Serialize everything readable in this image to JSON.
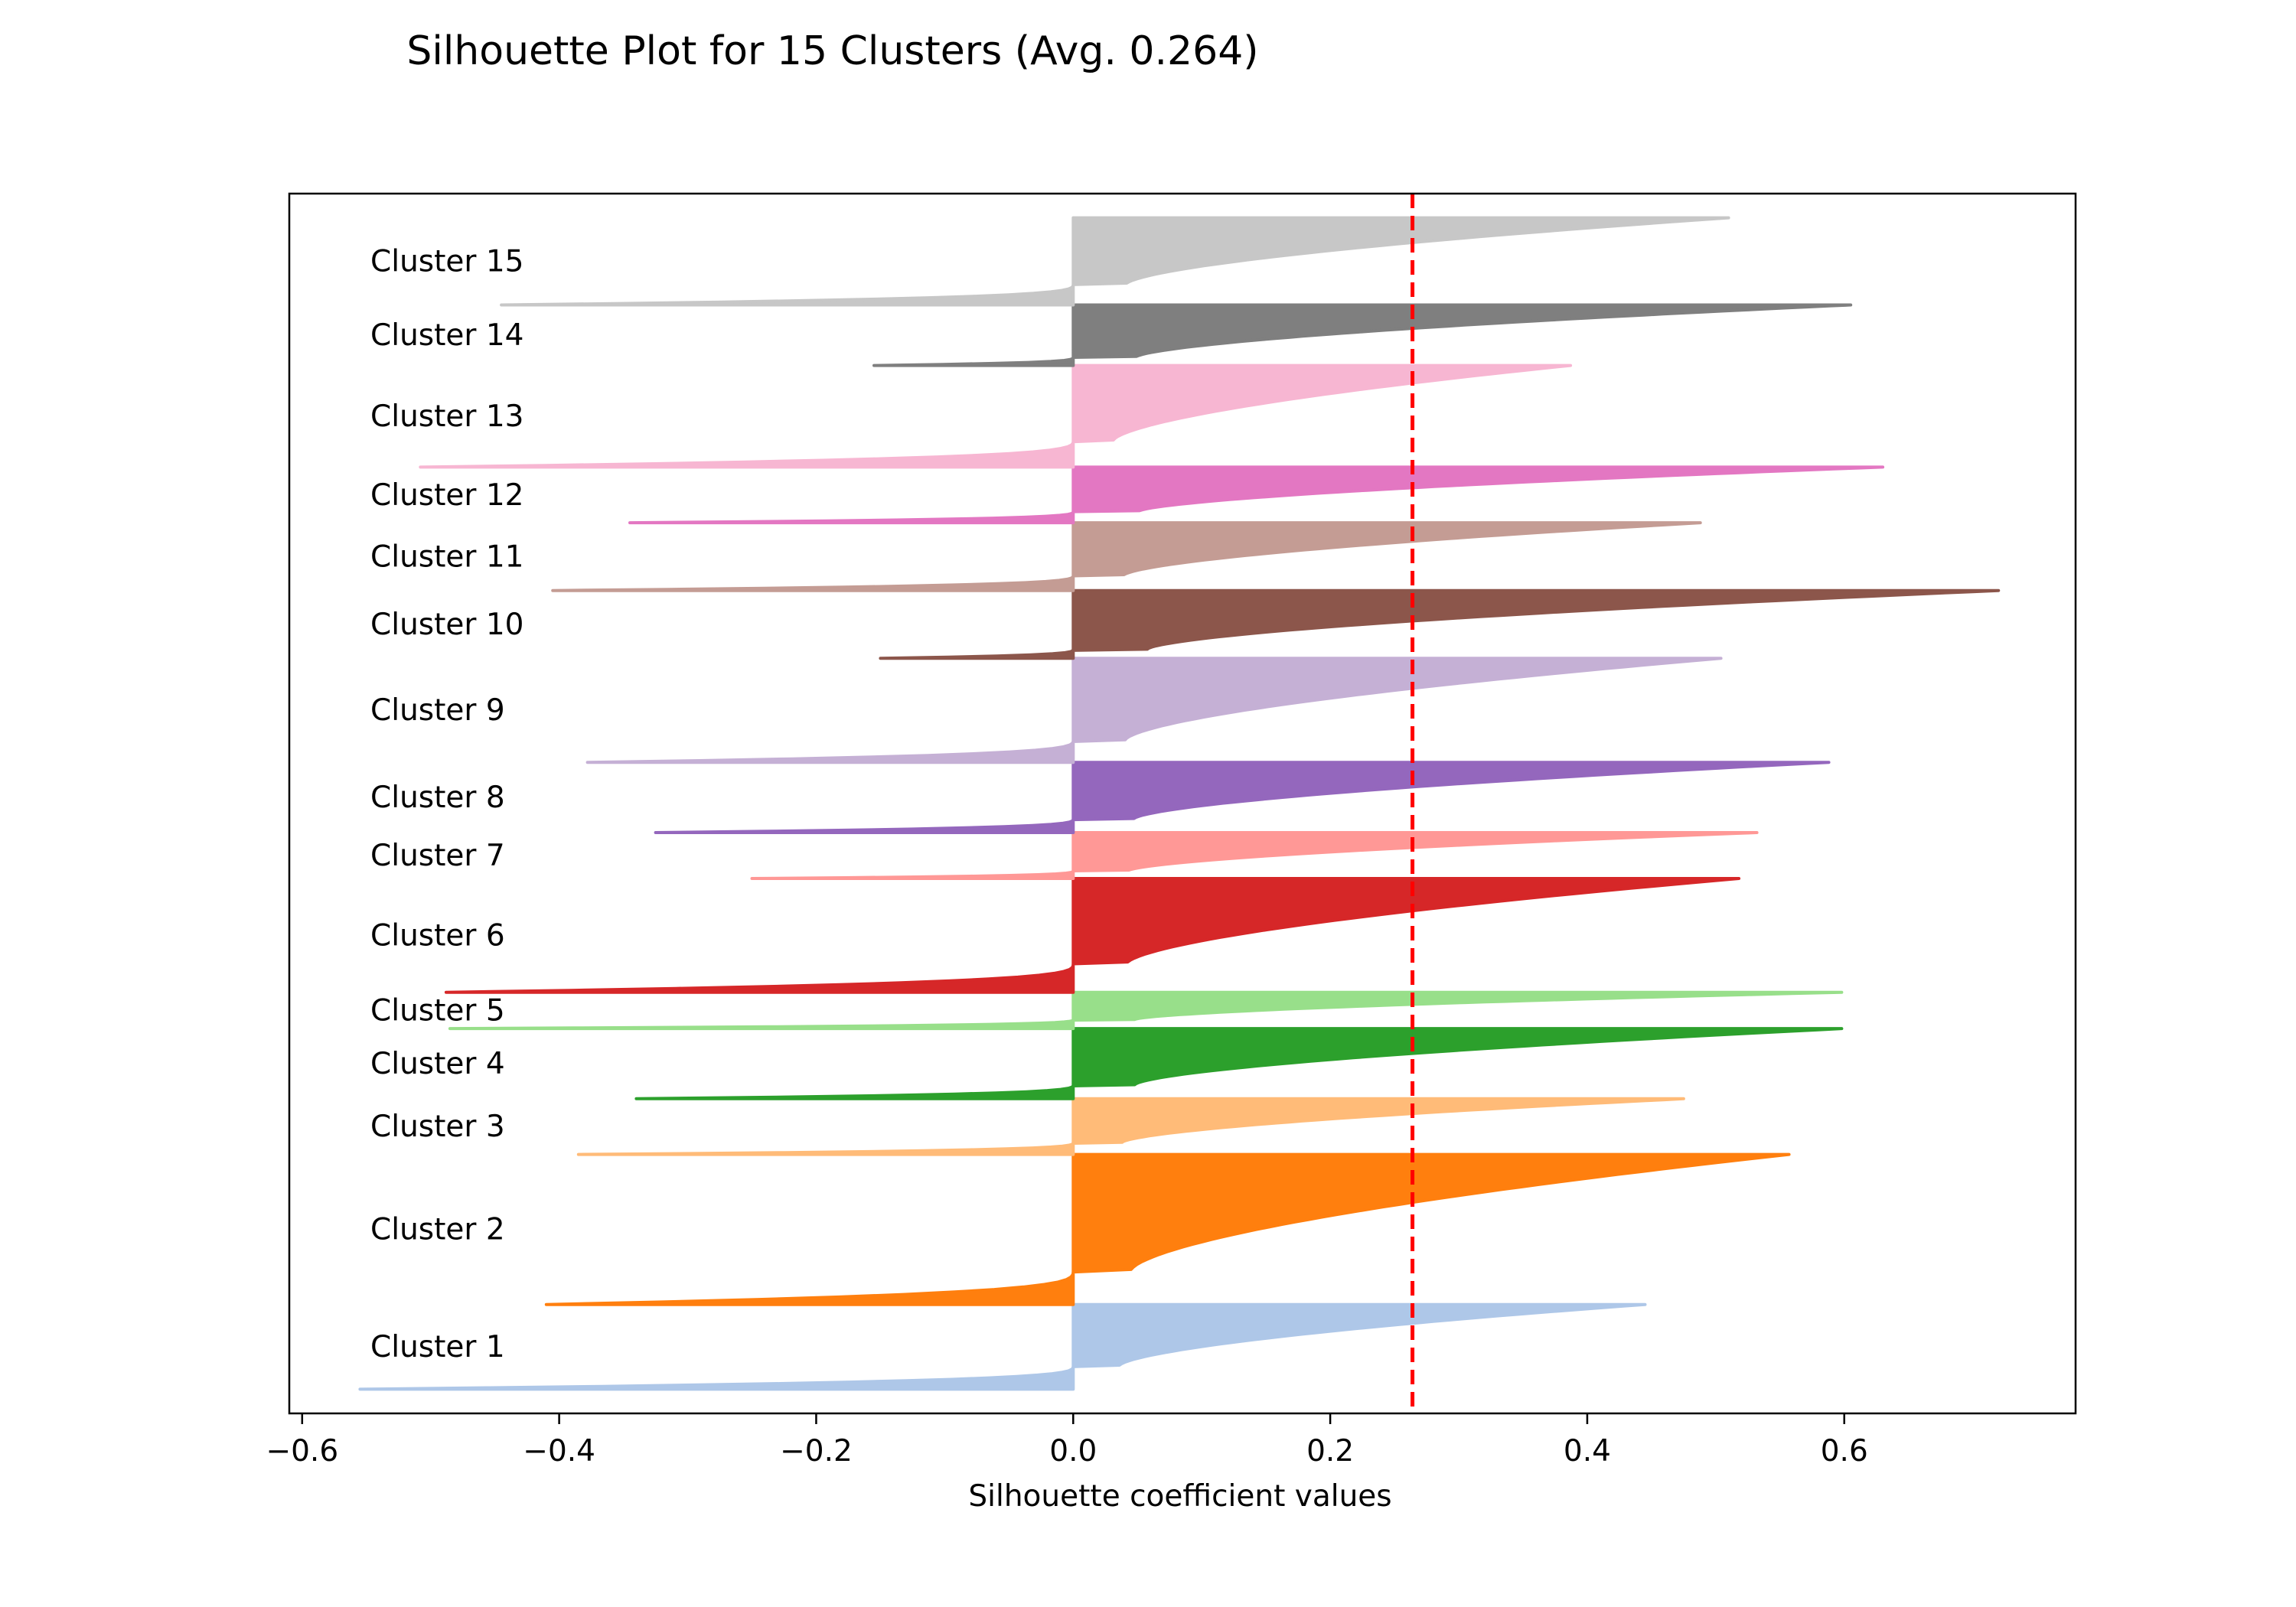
{
  "chart_data": {
    "type": "area",
    "title": "Silhouette Plot for 15 Clusters (Avg. 0.264)",
    "xlabel": "Silhouette coefficient values",
    "ylabel": "",
    "xlim": [
      -0.61,
      0.78
    ],
    "x_ticks": [
      -0.6,
      -0.4,
      -0.2,
      0.0,
      0.2,
      0.4,
      0.6
    ],
    "x_tick_labels": [
      "−0.6",
      "−0.4",
      "−0.2",
      "0.0",
      "0.2",
      "0.4",
      "0.6"
    ],
    "y_ticks_shown": false,
    "grid": false,
    "average_silhouette": 0.264,
    "average_line_color": "#ff0000",
    "clusters": [
      {
        "label": "Cluster 1",
        "size": 35,
        "min": -0.555,
        "max": 0.445,
        "color": "#aec7e8"
      },
      {
        "label": "Cluster 2",
        "size": 62,
        "min": -0.41,
        "max": 0.557,
        "color": "#ff7f0e"
      },
      {
        "label": "Cluster 3",
        "size": 23,
        "min": -0.385,
        "max": 0.475,
        "color": "#ffbb78"
      },
      {
        "label": "Cluster 4",
        "size": 29,
        "min": -0.34,
        "max": 0.598,
        "color": "#2ca02c"
      },
      {
        "label": "Cluster 5",
        "size": 15,
        "min": -0.485,
        "max": 0.598,
        "color": "#98df8a"
      },
      {
        "label": "Cluster 6",
        "size": 47,
        "min": -0.488,
        "max": 0.518,
        "color": "#d62728"
      },
      {
        "label": "Cluster 7",
        "size": 19,
        "min": -0.25,
        "max": 0.532,
        "color": "#ff9896"
      },
      {
        "label": "Cluster 8",
        "size": 29,
        "min": -0.325,
        "max": 0.588,
        "color": "#9467bd"
      },
      {
        "label": "Cluster 9",
        "size": 43,
        "min": -0.378,
        "max": 0.504,
        "color": "#c5b0d5"
      },
      {
        "label": "Cluster 10",
        "size": 28,
        "min": -0.15,
        "max": 0.72,
        "color": "#8c564b"
      },
      {
        "label": "Cluster 11",
        "size": 28,
        "min": -0.405,
        "max": 0.488,
        "color": "#c49c94"
      },
      {
        "label": "Cluster 12",
        "size": 23,
        "min": -0.345,
        "max": 0.63,
        "color": "#e377c2"
      },
      {
        "label": "Cluster 13",
        "size": 42,
        "min": -0.508,
        "max": 0.387,
        "color": "#f7b6d2"
      },
      {
        "label": "Cluster 14",
        "size": 25,
        "min": -0.155,
        "max": 0.605,
        "color": "#7f7f7f"
      },
      {
        "label": "Cluster 15",
        "size": 36,
        "min": -0.445,
        "max": 0.51,
        "color": "#c7c7c7"
      }
    ]
  }
}
